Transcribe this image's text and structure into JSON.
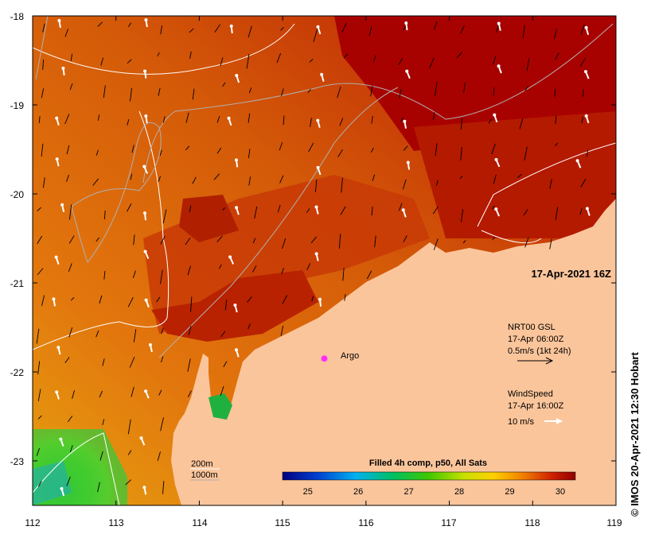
{
  "map": {
    "x_ticks": [
      "112",
      "113",
      "114",
      "115",
      "116",
      "117",
      "118",
      "119"
    ],
    "y_ticks": [
      "-18",
      "-19",
      "-20",
      "-21",
      "-22",
      "-23"
    ],
    "lon_range": [
      112,
      119
    ],
    "lat_range": [
      -18,
      -23.5
    ],
    "date_label": "17-Apr-2021 16Z",
    "argo_label": "Argo",
    "argo_position": {
      "lon": 115.5,
      "lat": -21.85
    },
    "current_legend": {
      "line1": "NRT00 GSL",
      "line2": "17-Apr 06:00Z",
      "line3": "0.5m/s (1kt 24h)"
    },
    "wind_legend": {
      "line1": "WindSpeed",
      "line2": "17-Apr 16:00Z",
      "line3": "10 m/s"
    },
    "depth_legend": {
      "shallow": "200m",
      "deep": "1000m"
    },
    "colorbar": {
      "title": "Filled 4h comp, p50, All Sats",
      "ticks": [
        "25",
        "26",
        "27",
        "28",
        "29",
        "30"
      ],
      "range": [
        24.5,
        30.3
      ]
    },
    "credit": "© IMOS 20-Apr-2021 12:30 Hobart",
    "colors": {
      "land": "#fbc59b",
      "warm": "#c61800",
      "hot": "#a80000",
      "mid": "#e2740c",
      "cool": "#62d20a"
    }
  }
}
